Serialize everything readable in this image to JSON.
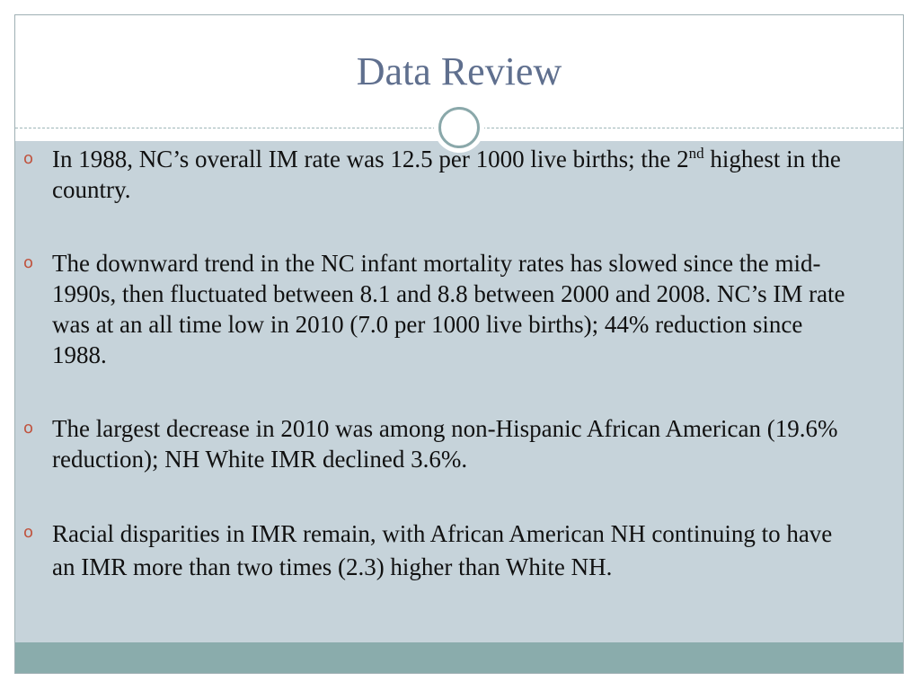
{
  "slide": {
    "title": "Data Review",
    "bullets": [
      {
        "text_before": "In 1988, NC’s overall IM rate was 12.5 per 1000 live births; the 2",
        "superscript": "nd",
        "text_after": " highest in the country."
      },
      {
        "text": "The downward trend in the NC infant mortality rates has slowed since the mid-1990s, then fluctuated between 8.1 and 8.8 between 2000 and 2008. NC’s IM rate was at an all time low in 2010 (7.0 per 1000 live births); 44% reduction since 1988."
      },
      {
        "text": "The largest decrease in 2010 was among non-Hispanic African American (19.6% reduction);  NH White IMR declined 3.6%."
      },
      {
        "text": "Racial disparities in IMR remain, with African American NH continuing to have an IMR more than two times (2.3) higher than White NH."
      }
    ],
    "bullet_marker": "o"
  },
  "colors": {
    "title": "#5f6f8e",
    "content_background": "#c6d3da",
    "footer_band": "#8aacac",
    "bullet_marker": "#c0533e"
  }
}
